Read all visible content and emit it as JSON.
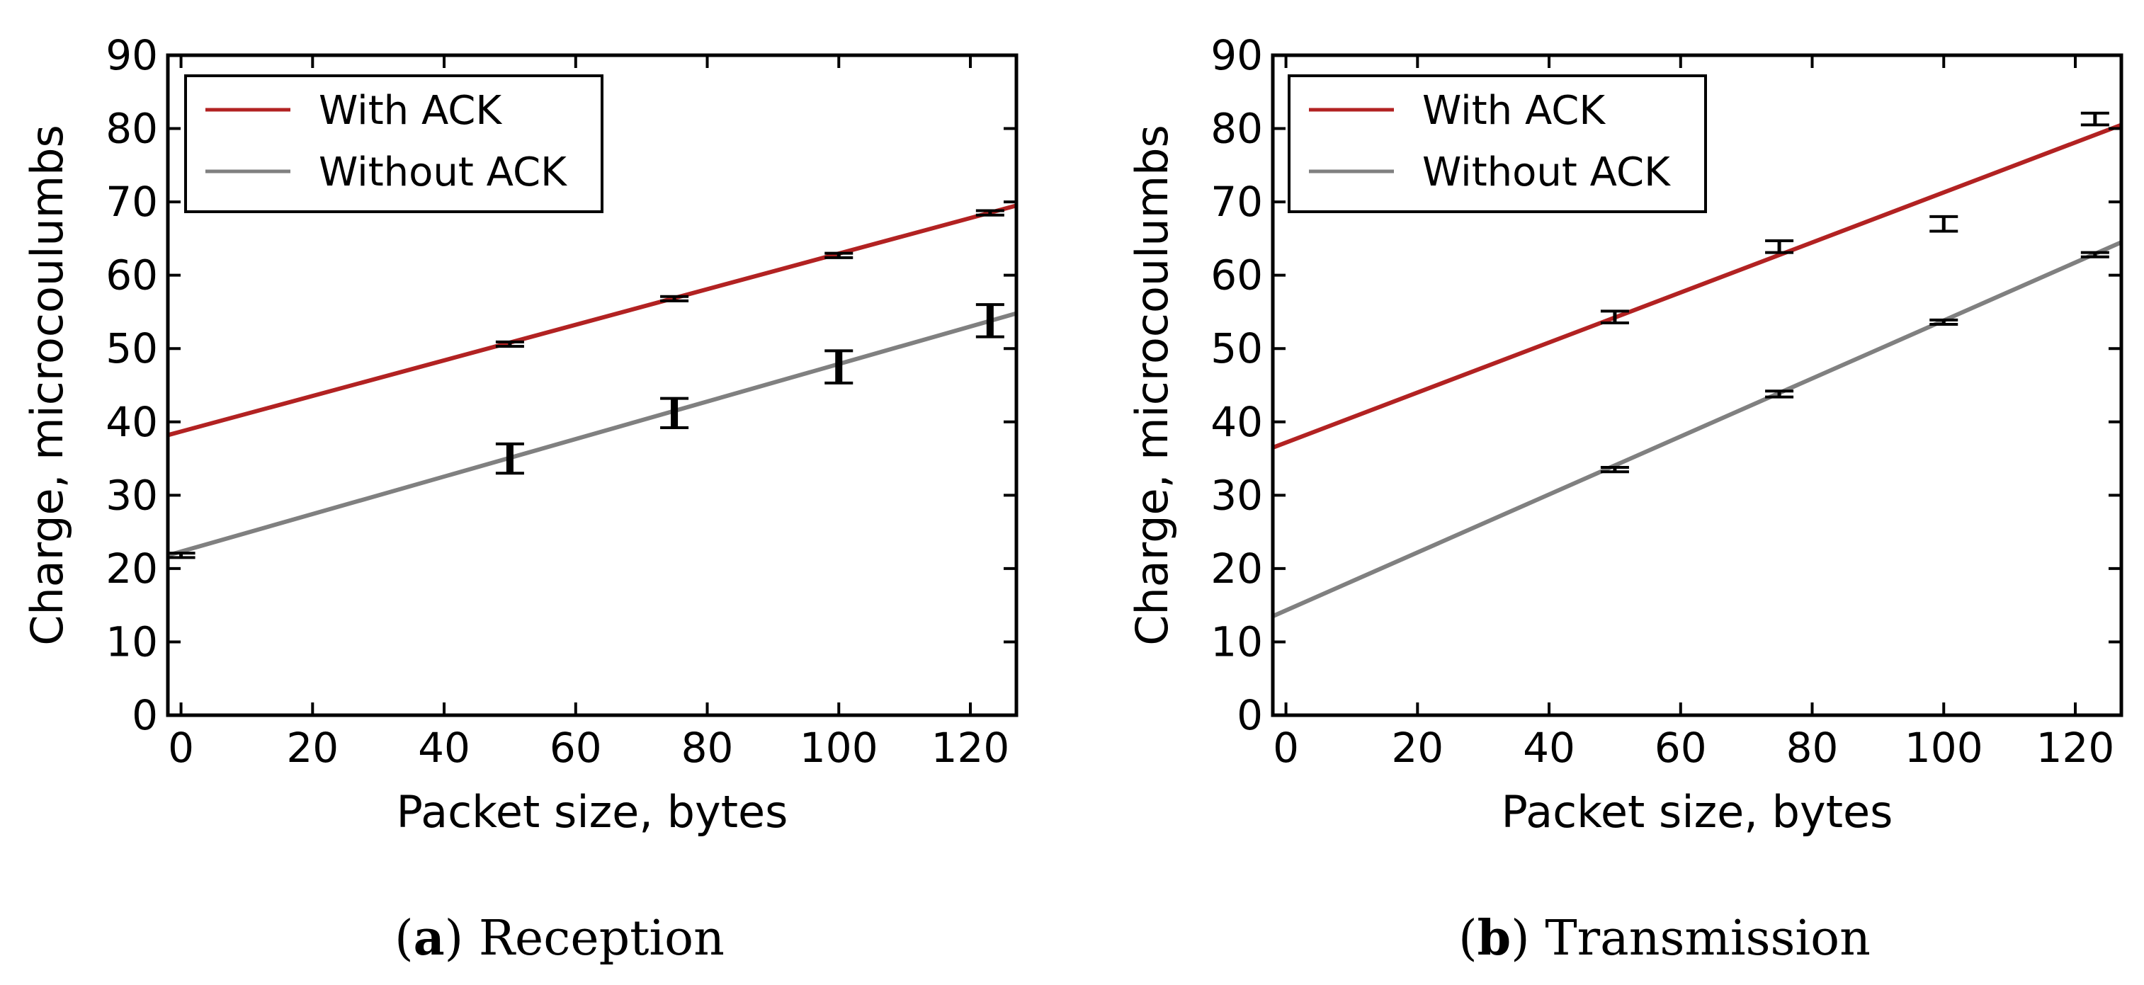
{
  "chart_data": [
    {
      "type": "line",
      "caption_letter": "a",
      "caption_title": "Reception",
      "xlabel": "Packet size, bytes",
      "ylabel": "Charge, microcoulumbs",
      "xlim": [
        -2,
        127
      ],
      "ylim": [
        0,
        90
      ],
      "xticks": [
        0,
        20,
        40,
        60,
        80,
        100,
        120
      ],
      "yticks": [
        0,
        10,
        20,
        30,
        40,
        50,
        60,
        70,
        80,
        90
      ],
      "legend_position": "top-left",
      "series": [
        {
          "name": "With ACK",
          "color": "#b22222",
          "line": [
            [
              -2,
              38.2
            ],
            [
              127,
              69.5
            ]
          ],
          "points": [
            {
              "x": 50,
              "y": 50.6,
              "err": 0.3
            },
            {
              "x": 75,
              "y": 56.8,
              "err": 0.3
            },
            {
              "x": 100,
              "y": 62.7,
              "err": 0.3
            },
            {
              "x": 123,
              "y": 68.5,
              "err": 0.3
            }
          ]
        },
        {
          "name": "Without ACK",
          "color": "#808080",
          "line": [
            [
              -2,
              21.8
            ],
            [
              127,
              54.8
            ]
          ],
          "points": [
            {
              "x": 0,
              "y": 21.8,
              "err": 0.3
            },
            {
              "x": 50,
              "y": 35.0,
              "err": 2.0
            },
            {
              "x": 75,
              "y": 41.2,
              "err": 2.0
            },
            {
              "x": 100,
              "y": 47.5,
              "err": 2.2
            },
            {
              "x": 123,
              "y": 53.8,
              "err": 2.2
            }
          ]
        }
      ]
    },
    {
      "type": "line",
      "caption_letter": "b",
      "caption_title": "Transmission",
      "xlabel": "Packet size, bytes",
      "ylabel": "Charge, microcoulumbs",
      "xlim": [
        -2,
        127
      ],
      "ylim": [
        0,
        90
      ],
      "xticks": [
        0,
        20,
        40,
        60,
        80,
        100,
        120
      ],
      "yticks": [
        0,
        10,
        20,
        30,
        40,
        50,
        60,
        70,
        80,
        90
      ],
      "legend_position": "top-left",
      "series": [
        {
          "name": "With ACK",
          "color": "#b22222",
          "line": [
            [
              -2,
              36.5
            ],
            [
              127,
              80.5
            ]
          ],
          "points": [
            {
              "x": 50,
              "y": 54.3,
              "err": 0.8
            },
            {
              "x": 75,
              "y": 63.9,
              "err": 0.8
            },
            {
              "x": 100,
              "y": 67.0,
              "err": 1.0
            },
            {
              "x": 123,
              "y": 81.3,
              "err": 0.8
            }
          ]
        },
        {
          "name": "Without ACK",
          "color": "#808080",
          "line": [
            [
              -2,
              13.5
            ],
            [
              127,
              64.5
            ]
          ],
          "points": [
            {
              "x": 50,
              "y": 33.5,
              "err": 0.3
            },
            {
              "x": 75,
              "y": 43.8,
              "err": 0.4
            },
            {
              "x": 100,
              "y": 53.6,
              "err": 0.3
            },
            {
              "x": 123,
              "y": 62.8,
              "err": 0.3
            }
          ]
        }
      ]
    }
  ]
}
